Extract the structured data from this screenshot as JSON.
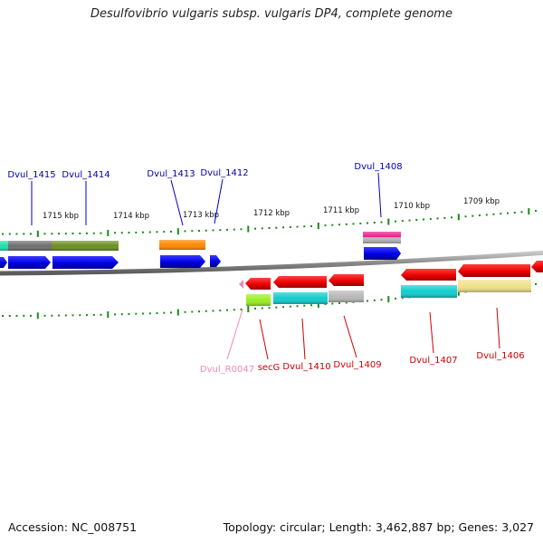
{
  "title": "Desulfovibrio vulgaris subsp. vulgaris DP4, complete genome",
  "footer": {
    "accession": "Accession: NC_008751",
    "topology": "Topology: circular; Length: 3,462,887 bp; Genes: 3,027"
  },
  "scale_labels": [
    "1715 kbp",
    "1714 kbp",
    "1713 kbp",
    "1712 kbp",
    "1711 kbp",
    "1710 kbp",
    "1709 kbp"
  ],
  "gene_labels_top": [
    "Dvul_1415",
    "Dvul_1414",
    "Dvul_1413",
    "Dvul_1412",
    "Dvul_1408"
  ],
  "gene_labels_bottom": [
    "Dvul_R0047",
    "secG",
    "Dvul_1410",
    "Dvul_1409",
    "Dvul_1407",
    "Dvul_1406"
  ],
  "colors": {
    "forward_label": "#0000aa",
    "reverse_label": "#cc0000",
    "rna_label": "#ee88bb",
    "forward_gene": "#0000ee",
    "reverse_gene": "#ee0000",
    "tick": "#1a8a1a",
    "backbone": "#8a8a8a"
  }
}
